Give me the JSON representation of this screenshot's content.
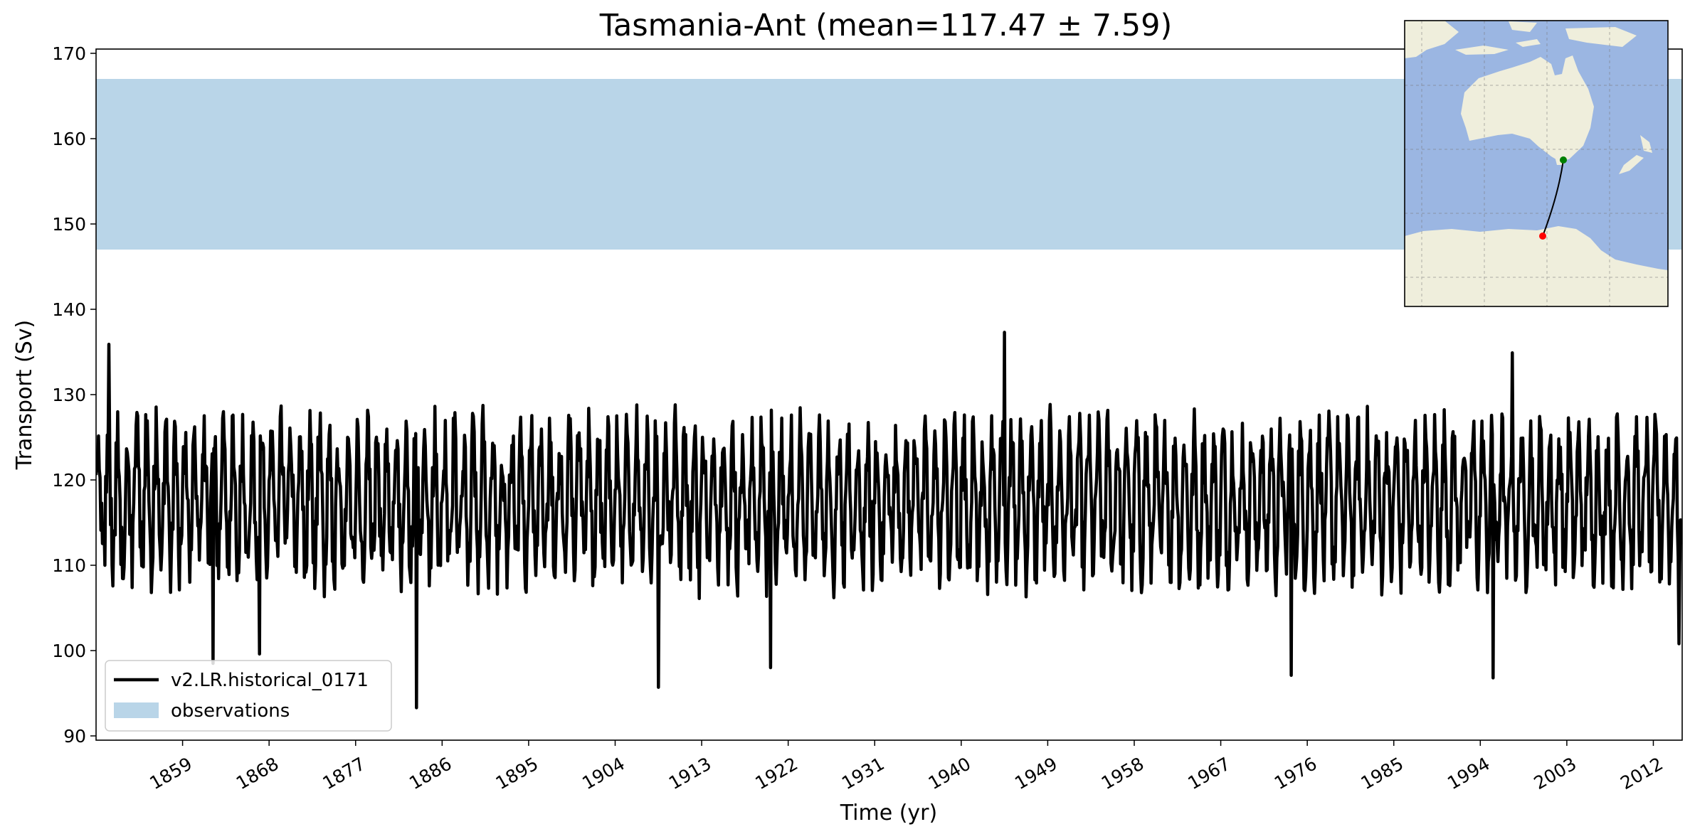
{
  "chart_data": {
    "type": "line",
    "title": "Tasmania-Ant (mean=117.47 ± 7.59)",
    "xlabel": "Time (yr)",
    "ylabel": "Transport (Sv)",
    "xlim": [
      1850,
      2015
    ],
    "ylim": [
      89.5,
      170.5
    ],
    "xticks": [
      1859,
      1868,
      1877,
      1886,
      1895,
      1904,
      1913,
      1922,
      1931,
      1940,
      1949,
      1958,
      1967,
      1976,
      1985,
      1994,
      2003,
      2012
    ],
    "yticks": [
      90,
      100,
      110,
      120,
      130,
      140,
      150,
      160,
      170
    ],
    "grid": false,
    "legend_position": "lower-left",
    "series": [
      {
        "name": "v2.LR.historical_0171",
        "color": "#000000",
        "kind": "line",
        "mean": 117.47,
        "std": 7.59,
        "x_start": 1850,
        "x_end": 2015,
        "y_min": 93.3,
        "y_max": 137.3,
        "sampling": "monthly",
        "notable_points": [
          {
            "x": 1851.3,
            "y": 135.9
          },
          {
            "x": 1862.2,
            "y": 98.5
          },
          {
            "x": 1867.0,
            "y": 99.6
          },
          {
            "x": 1883.3,
            "y": 93.3
          },
          {
            "x": 1908.5,
            "y": 95.7
          },
          {
            "x": 1920.2,
            "y": 98.0
          },
          {
            "x": 1944.5,
            "y": 137.3
          },
          {
            "x": 1974.3,
            "y": 97.1
          },
          {
            "x": 1995.3,
            "y": 96.8
          },
          {
            "x": 1997.3,
            "y": 134.9
          },
          {
            "x": 2014.7,
            "y": 100.8
          }
        ]
      },
      {
        "name": "observations",
        "color": "#b9d5e8",
        "kind": "band",
        "y_range": [
          147,
          167
        ]
      }
    ],
    "inset_map": {
      "region": "Tasmania to Antarctica section",
      "colors": {
        "ocean": "#9bb6e2",
        "land": "#efeedc",
        "path": "#000000",
        "start_marker": "#ff0000",
        "end_marker": "#008000"
      }
    }
  }
}
